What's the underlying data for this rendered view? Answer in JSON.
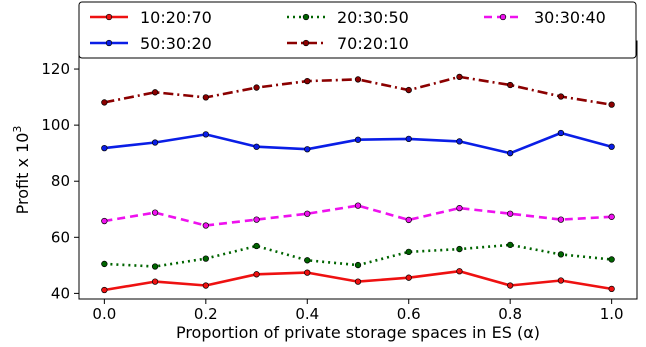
{
  "chart_data": {
    "type": "line",
    "xlabel": "Proportion of private storage spaces in ES (α)",
    "ylabel": "Profit x 10",
    "ylabel_sup": "3",
    "x": [
      0.0,
      0.1,
      0.2,
      0.3,
      0.4,
      0.5,
      0.6,
      0.7,
      0.8,
      0.9,
      1.0
    ],
    "xlim": [
      -0.05,
      1.05
    ],
    "ylim": [
      38,
      130
    ],
    "xticks": [
      "0.0",
      "0.2",
      "0.4",
      "0.6",
      "0.8",
      "1.0"
    ],
    "yticks": [
      "40",
      "60",
      "80",
      "100",
      "120"
    ],
    "grid": false,
    "legend_placement": "top, 3 columns",
    "series": [
      {
        "name": "10:20:70",
        "color": "#ee1111",
        "dash": "solid",
        "values": [
          41.2,
          44.2,
          42.8,
          46.8,
          47.4,
          44.2,
          45.6,
          47.9,
          42.8,
          44.6,
          41.6
        ]
      },
      {
        "name": "20:30:50",
        "color": "#006400",
        "dash": "dotted",
        "values": [
          50.5,
          49.6,
          52.4,
          56.9,
          51.8,
          50.1,
          54.8,
          55.8,
          57.3,
          53.9,
          52.1
        ]
      },
      {
        "name": "30:30:40",
        "color": "#ee11ee",
        "dash": "dashed",
        "values": [
          65.8,
          68.8,
          64.2,
          66.3,
          68.4,
          71.3,
          66.2,
          70.4,
          68.4,
          66.3,
          67.3
        ]
      },
      {
        "name": "50:30:20",
        "color": "#0a1ee6",
        "dash": "solid",
        "values": [
          91.8,
          93.8,
          96.7,
          92.3,
          91.4,
          94.8,
          95.1,
          94.2,
          90.0,
          97.2,
          92.3
        ]
      },
      {
        "name": "70:20:10",
        "color": "#8b0000",
        "dash": "dashdot",
        "values": [
          108.1,
          111.7,
          109.9,
          113.4,
          115.7,
          116.3,
          112.5,
          117.2,
          114.3,
          110.2,
          107.3
        ]
      }
    ]
  }
}
